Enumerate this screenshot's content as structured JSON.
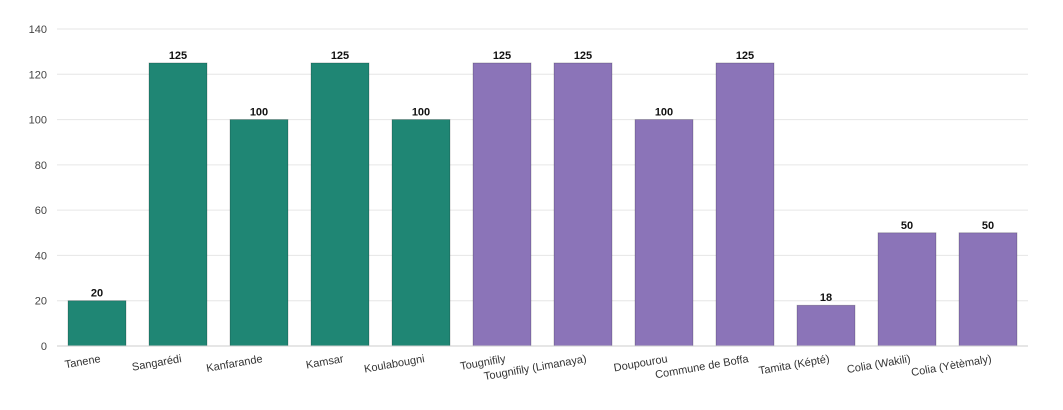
{
  "chart_data": {
    "type": "bar",
    "title": "",
    "xlabel": "",
    "ylabel": "",
    "ylim": [
      0,
      140
    ],
    "yticks": [
      0,
      20,
      40,
      60,
      80,
      100,
      120,
      140
    ],
    "grid": true,
    "categories": [
      "Tanene",
      "Sangarédi",
      "Kanfarande",
      "Kamsar",
      "Koulabougni",
      "Tougnifily",
      "Tougnifily (Limanaya)",
      "Doupourou",
      "Commune de Boffa",
      "Tamita (Képté)",
      "Colia (Wakili)",
      "Colia (Yètèmaly)"
    ],
    "values": [
      20,
      125,
      100,
      125,
      100,
      125,
      125,
      100,
      125,
      18,
      50,
      50
    ],
    "bar_colors": [
      "#1f8674",
      "#1f8674",
      "#1f8674",
      "#1f8674",
      "#1f8674",
      "#8b74b8",
      "#8b74b8",
      "#8b74b8",
      "#8b74b8",
      "#8b74b8",
      "#8b74b8",
      "#8b74b8"
    ],
    "data_labels": true
  }
}
